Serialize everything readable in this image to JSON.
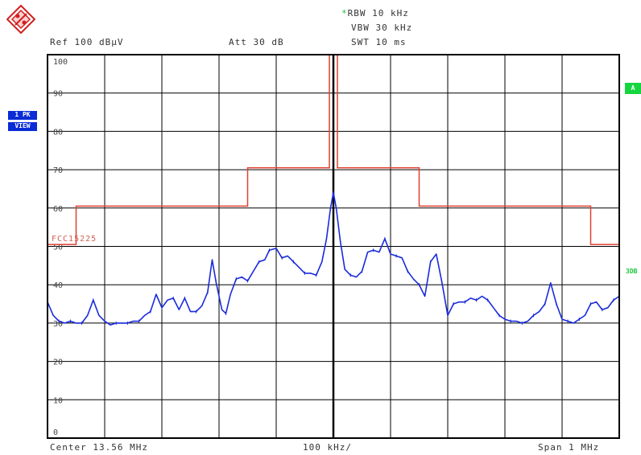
{
  "header": {
    "rbw": "RBW 10 kHz",
    "vbw": "VBW 30 kHz",
    "swt": "SWT 10 ms",
    "ref": "Ref  100 dBµV",
    "att": "Att  30 dB"
  },
  "side": {
    "trace_label": "1 PK",
    "view_label": "VIEW",
    "marker_a": "A",
    "label_3db": "3DB"
  },
  "footer": {
    "center": "Center 13.56 MHz",
    "div": "100 kHz/",
    "span": "Span 1 MHz"
  },
  "colors": {
    "trace": "#1a2bdc",
    "limit": "#e04030",
    "grid": "#000000",
    "center_line": "#000000"
  },
  "chart_data": {
    "type": "line",
    "ylim": [
      0,
      100
    ],
    "y_ticks": [
      0,
      10,
      20,
      30,
      40,
      50,
      60,
      70,
      80,
      90,
      100
    ],
    "y_tick_labels": [
      "0",
      "10",
      "20",
      "30",
      "40",
      "50",
      "60",
      "70",
      "80",
      "90",
      "100"
    ],
    "x_unit": "kHz offset from center",
    "xlim": [
      -500,
      500
    ],
    "limit_line": {
      "name": "FCC15225",
      "points": [
        [
          -500,
          50.5
        ],
        [
          -450,
          50.5
        ],
        [
          -450,
          60.5
        ],
        [
          -150,
          60.5
        ],
        [
          -150,
          70.5
        ],
        [
          -7,
          70.5
        ],
        [
          -7,
          100
        ],
        [
          7,
          100
        ],
        [
          7,
          70.5
        ],
        [
          150,
          70.5
        ],
        [
          150,
          60.5
        ],
        [
          450,
          60.5
        ],
        [
          450,
          50.5
        ],
        [
          500,
          50.5
        ]
      ]
    },
    "series": [
      {
        "values": [
          [
            -500,
            35.5
          ],
          [
            -490,
            32
          ],
          [
            -480,
            30.5
          ],
          [
            -470,
            30
          ],
          [
            -460,
            30.5
          ],
          [
            -450,
            30
          ],
          [
            -440,
            30
          ],
          [
            -430,
            32
          ],
          [
            -420,
            36
          ],
          [
            -410,
            32
          ],
          [
            -400,
            30.5
          ],
          [
            -390,
            29.5
          ],
          [
            -380,
            30
          ],
          [
            -370,
            30
          ],
          [
            -360,
            30
          ],
          [
            -350,
            30.5
          ],
          [
            -340,
            30.5
          ],
          [
            -330,
            32
          ],
          [
            -320,
            33
          ],
          [
            -310,
            37.5
          ],
          [
            -300,
            34
          ],
          [
            -290,
            36
          ],
          [
            -280,
            36.5
          ],
          [
            -270,
            33.5
          ],
          [
            -260,
            36.5
          ],
          [
            -250,
            33
          ],
          [
            -240,
            33
          ],
          [
            -230,
            34.5
          ],
          [
            -220,
            38
          ],
          [
            -212,
            46.5
          ],
          [
            -205,
            40.5
          ],
          [
            -195,
            33.5
          ],
          [
            -188,
            32.5
          ],
          [
            -180,
            37.5
          ],
          [
            -170,
            41.5
          ],
          [
            -160,
            42
          ],
          [
            -150,
            41
          ],
          [
            -140,
            43.5
          ],
          [
            -130,
            46
          ],
          [
            -120,
            46.5
          ],
          [
            -112,
            49
          ],
          [
            -100,
            49.5
          ],
          [
            -90,
            47
          ],
          [
            -80,
            47.5
          ],
          [
            -70,
            46
          ],
          [
            -60,
            44.5
          ],
          [
            -50,
            43
          ],
          [
            -40,
            43
          ],
          [
            -30,
            42.5
          ],
          [
            -20,
            46
          ],
          [
            -12,
            52
          ],
          [
            -5,
            60
          ],
          [
            0,
            64
          ],
          [
            5,
            60
          ],
          [
            12,
            51.5
          ],
          [
            20,
            44
          ],
          [
            30,
            42.5
          ],
          [
            40,
            42
          ],
          [
            50,
            43.5
          ],
          [
            60,
            48.5
          ],
          [
            70,
            49
          ],
          [
            80,
            48.5
          ],
          [
            90,
            52
          ],
          [
            100,
            48
          ],
          [
            110,
            47.5
          ],
          [
            120,
            47
          ],
          [
            130,
            43.5
          ],
          [
            140,
            41.5
          ],
          [
            150,
            40
          ],
          [
            160,
            37
          ],
          [
            170,
            46
          ],
          [
            180,
            48
          ],
          [
            190,
            40.5
          ],
          [
            200,
            32
          ],
          [
            210,
            35
          ],
          [
            220,
            35.5
          ],
          [
            230,
            35.5
          ],
          [
            240,
            36.5
          ],
          [
            250,
            36
          ],
          [
            260,
            37
          ],
          [
            270,
            36
          ],
          [
            280,
            34
          ],
          [
            290,
            32
          ],
          [
            300,
            31
          ],
          [
            310,
            30.5
          ],
          [
            320,
            30.5
          ],
          [
            330,
            30
          ],
          [
            340,
            30.5
          ],
          [
            350,
            32
          ],
          [
            360,
            33
          ],
          [
            370,
            35
          ],
          [
            380,
            40.5
          ],
          [
            390,
            35
          ],
          [
            400,
            31
          ],
          [
            410,
            30.5
          ],
          [
            420,
            30
          ],
          [
            430,
            31
          ],
          [
            440,
            32
          ],
          [
            450,
            35
          ],
          [
            460,
            35.5
          ],
          [
            470,
            33.5
          ],
          [
            480,
            34
          ],
          [
            490,
            36
          ],
          [
            500,
            37
          ]
        ]
      }
    ]
  }
}
